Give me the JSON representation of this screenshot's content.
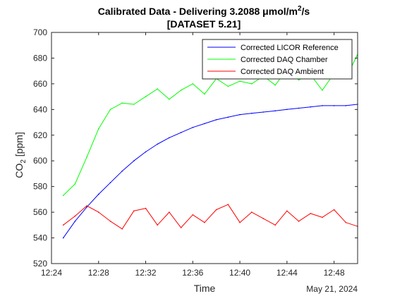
{
  "chart_data": {
    "type": "line",
    "title_prefix": "Calibrated Data - Delivering 3.2088 μmol/m",
    "title_sup": "2",
    "title_suffix": "/s",
    "subtitle": "[DATASET 5.21]",
    "xlabel": "Time",
    "ylabel_main": "CO",
    "ylabel_sub": "2",
    "ylabel_unit": " [ppm]",
    "date_label": "May 21, 2024",
    "xlim": [
      "12:24",
      "12:50"
    ],
    "ylim": [
      520,
      700
    ],
    "x_ticks": [
      "12:24",
      "12:28",
      "12:32",
      "12:36",
      "12:40",
      "12:44",
      "12:48"
    ],
    "y_ticks": [
      520,
      540,
      560,
      580,
      600,
      620,
      640,
      660,
      680,
      700
    ],
    "grid": false,
    "legend_position": "top-right",
    "x": [
      "12:25",
      "12:26",
      "12:27",
      "12:28",
      "12:29",
      "12:30",
      "12:31",
      "12:32",
      "12:33",
      "12:34",
      "12:35",
      "12:36",
      "12:37",
      "12:38",
      "12:39",
      "12:40",
      "12:41",
      "12:42",
      "12:43",
      "12:44",
      "12:45",
      "12:46",
      "12:47",
      "12:48",
      "12:49",
      "12:50"
    ],
    "series": [
      {
        "name": "Corrected LICOR Reference",
        "color": "#0000ff",
        "values": [
          540,
          553,
          564,
          574,
          583,
          592,
          600,
          607,
          613,
          618,
          622,
          626,
          629,
          632,
          634,
          636,
          637,
          638,
          639,
          640,
          641,
          642,
          643,
          643,
          643,
          644
        ]
      },
      {
        "name": "Corrected DAQ Chamber",
        "color": "#00ff00",
        "values": [
          573,
          582,
          603,
          625,
          640,
          645,
          644,
          650,
          656,
          648,
          655,
          660,
          652,
          664,
          658,
          662,
          660,
          666,
          659,
          671,
          663,
          667,
          655,
          668,
          664,
          683
        ]
      },
      {
        "name": "Corrected DAQ Ambient",
        "color": "#ff0000",
        "values": [
          550,
          557,
          565,
          560,
          553,
          547,
          561,
          563,
          550,
          560,
          548,
          558,
          552,
          562,
          566,
          552,
          560,
          555,
          550,
          561,
          553,
          559,
          556,
          562,
          552,
          549
        ]
      }
    ]
  }
}
